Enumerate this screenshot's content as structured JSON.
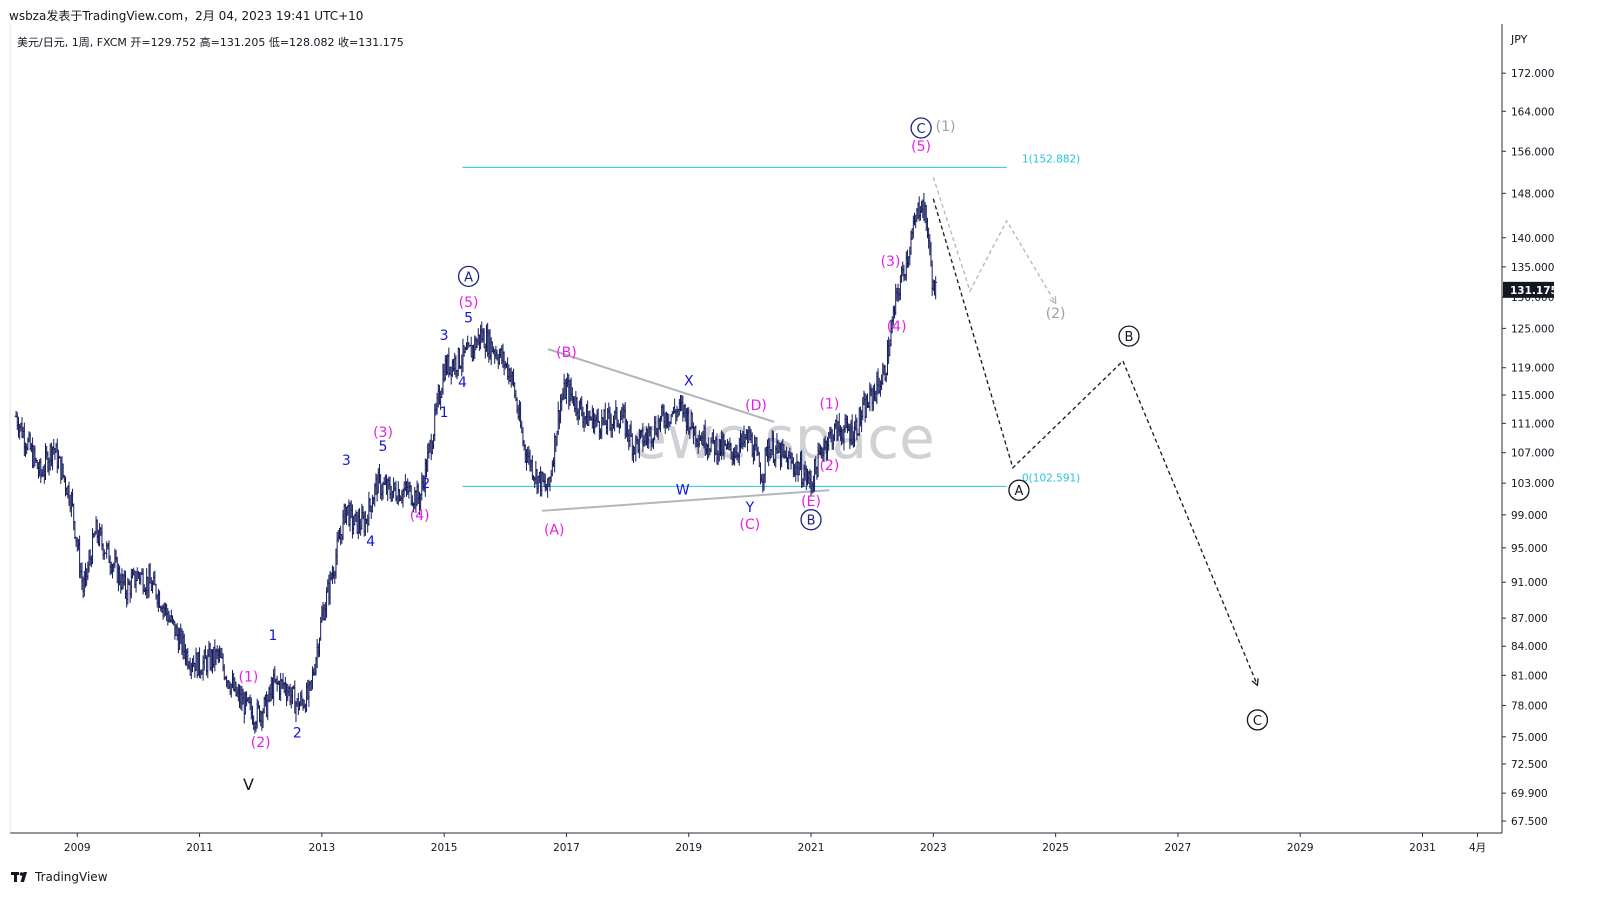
{
  "header": {
    "publisher_line": "wsbza发表于TradingView.com，2月 04, 2023 19:41 UTC+10"
  },
  "symbol_line": "美元/日元, 1周, FXCM  开=129.752  高=131.205  低=128.082  收=131.175",
  "watermark": "ewc space",
  "footer": {
    "brand": "TradingView",
    "brand_icon": "tradingview-logo-icon"
  },
  "colors": {
    "candles": "#131a5a",
    "fib": "#26c6da",
    "magenta": "#e91ee6",
    "blue": "#1515d8",
    "grey": "#9e9e9e",
    "navy": "#1a237e",
    "price_tag": "#131722"
  },
  "chart_data": {
    "type": "candlestick",
    "title": "美元/日元, 1周, FXCM",
    "y_axis": {
      "label": "JPY",
      "scale": "log",
      "ticks": [
        "172.000",
        "164.000",
        "156.000",
        "148.000",
        "140.000",
        "135.000",
        "130.000",
        "125.000",
        "119.000",
        "115.000",
        "111.000",
        "107.000",
        "103.000",
        "99.000",
        "95.000",
        "91.000",
        "87.000",
        "84.000",
        "81.000",
        "78.000",
        "75.000",
        "72.500",
        "69.900",
        "67.500"
      ],
      "ylim": [
        66.5,
        182
      ]
    },
    "x_axis": {
      "ticks": [
        "2009",
        "2011",
        "2013",
        "2015",
        "2017",
        "2019",
        "2021",
        "2023",
        "2025",
        "2027",
        "2029",
        "2031",
        "4月"
      ],
      "xlim": [
        2007.9,
        2032.3
      ]
    },
    "last_price": "131.175",
    "ohlc_last": {
      "open": 129.752,
      "high": 131.205,
      "low": 128.082,
      "close": 131.175
    },
    "price_path": [
      [
        2008.0,
        112
      ],
      [
        2008.2,
        108
      ],
      [
        2008.4,
        104
      ],
      [
        2008.6,
        108
      ],
      [
        2008.9,
        101
      ],
      [
        2009.1,
        90
      ],
      [
        2009.3,
        97
      ],
      [
        2009.6,
        93
      ],
      [
        2009.8,
        90
      ],
      [
        2010.0,
        92
      ],
      [
        2010.3,
        90
      ],
      [
        2010.5,
        87
      ],
      [
        2010.8,
        83
      ],
      [
        2011.0,
        82
      ],
      [
        2011.3,
        83
      ],
      [
        2011.6,
        79
      ],
      [
        2011.9,
        77
      ],
      [
        2012.1,
        78
      ],
      [
        2012.2,
        80
      ],
      [
        2012.4,
        80
      ],
      [
        2012.6,
        78
      ],
      [
        2012.8,
        79
      ],
      [
        2013.0,
        87
      ],
      [
        2013.2,
        93
      ],
      [
        2013.4,
        100
      ],
      [
        2013.5,
        98
      ],
      [
        2013.7,
        98
      ],
      [
        2013.9,
        103
      ],
      [
        2014.1,
        102
      ],
      [
        2014.4,
        102
      ],
      [
        2014.6,
        101
      ],
      [
        2014.8,
        109
      ],
      [
        2015.0,
        119
      ],
      [
        2015.2,
        120
      ],
      [
        2015.4,
        121
      ],
      [
        2015.6,
        124
      ],
      [
        2015.9,
        121
      ],
      [
        2016.1,
        118
      ],
      [
        2016.3,
        108
      ],
      [
        2016.5,
        104
      ],
      [
        2016.7,
        102
      ],
      [
        2016.9,
        114
      ],
      [
        2017.0,
        116
      ],
      [
        2017.3,
        112
      ],
      [
        2017.6,
        111
      ],
      [
        2017.9,
        112
      ],
      [
        2018.1,
        108
      ],
      [
        2018.3,
        109
      ],
      [
        2018.6,
        112
      ],
      [
        2018.9,
        113
      ],
      [
        2019.1,
        110
      ],
      [
        2019.4,
        108
      ],
      [
        2019.7,
        107
      ],
      [
        2020.0,
        109
      ],
      [
        2020.2,
        104
      ],
      [
        2020.3,
        108
      ],
      [
        2020.6,
        106
      ],
      [
        2020.8,
        105
      ],
      [
        2021.0,
        103
      ],
      [
        2021.2,
        108
      ],
      [
        2021.4,
        110
      ],
      [
        2021.7,
        110
      ],
      [
        2022.0,
        115
      ],
      [
        2022.2,
        118
      ],
      [
        2022.4,
        130
      ],
      [
        2022.6,
        138
      ],
      [
        2022.8,
        147
      ],
      [
        2022.9,
        142
      ],
      [
        2023.0,
        131.175
      ]
    ],
    "fib_levels": [
      {
        "label": "1(152.882)",
        "value": 152.882
      },
      {
        "label": "0(102.591)",
        "value": 102.591
      }
    ],
    "wave_labels": [
      {
        "text": "V",
        "date": 2011.8,
        "price": 70.6,
        "style": "black"
      },
      {
        "text": "(1)",
        "date": 2011.8,
        "price": 80.9,
        "style": "magenta"
      },
      {
        "text": "(2)",
        "date": 2012.0,
        "price": 74.5,
        "style": "magenta"
      },
      {
        "text": "1",
        "date": 2012.2,
        "price": 85.2,
        "style": "blue"
      },
      {
        "text": "2",
        "date": 2012.6,
        "price": 75.4,
        "style": "blue"
      },
      {
        "text": "3",
        "date": 2013.4,
        "price": 106.0,
        "style": "blue"
      },
      {
        "text": "4",
        "date": 2013.8,
        "price": 95.8,
        "style": "blue"
      },
      {
        "text": "(3)",
        "date": 2014.0,
        "price": 109.8,
        "style": "magenta"
      },
      {
        "text": "5",
        "date": 2014.0,
        "price": 107.9,
        "style": "blue"
      },
      {
        "text": "(4)",
        "date": 2014.6,
        "price": 99.0,
        "style": "magenta"
      },
      {
        "text": "2",
        "date": 2014.7,
        "price": 103.0,
        "style": "blue"
      },
      {
        "text": "1",
        "date": 2015.0,
        "price": 112.6,
        "style": "blue"
      },
      {
        "text": "3",
        "date": 2015.0,
        "price": 124.0,
        "style": "blue"
      },
      {
        "text": "4",
        "date": 2015.3,
        "price": 116.9,
        "style": "blue"
      },
      {
        "text": "5",
        "date": 2015.4,
        "price": 126.7,
        "style": "blue"
      },
      {
        "text": "(5)",
        "date": 2015.4,
        "price": 129.2,
        "style": "magenta"
      },
      {
        "text": "A",
        "date": 2015.4,
        "price": 133.4,
        "style": "navy-circle"
      },
      {
        "text": "(B)",
        "date": 2017.0,
        "price": 121.4,
        "style": "magenta"
      },
      {
        "text": "(A)",
        "date": 2016.8,
        "price": 97.2,
        "style": "magenta"
      },
      {
        "text": "X",
        "date": 2019.0,
        "price": 117.1,
        "style": "blue"
      },
      {
        "text": "W",
        "date": 2018.9,
        "price": 102.2,
        "style": "blue"
      },
      {
        "text": "(D)",
        "date": 2020.1,
        "price": 113.6,
        "style": "magenta"
      },
      {
        "text": "Y",
        "date": 2020.0,
        "price": 100.0,
        "style": "blue"
      },
      {
        "text": "(C)",
        "date": 2020.0,
        "price": 97.9,
        "style": "magenta"
      },
      {
        "text": "(1)",
        "date": 2021.3,
        "price": 113.8,
        "style": "magenta"
      },
      {
        "text": "(2)",
        "date": 2021.3,
        "price": 105.4,
        "style": "magenta"
      },
      {
        "text": "(E)",
        "date": 2021.0,
        "price": 100.7,
        "style": "magenta"
      },
      {
        "text": "B",
        "date": 2021.0,
        "price": 98.4,
        "style": "navy-circle"
      },
      {
        "text": "(4)",
        "date": 2022.4,
        "price": 125.4,
        "style": "magenta"
      },
      {
        "text": "(3)",
        "date": 2022.3,
        "price": 136.0,
        "style": "magenta"
      },
      {
        "text": "(5)",
        "date": 2022.8,
        "price": 157.0,
        "style": "magenta"
      },
      {
        "text": "C",
        "date": 2022.8,
        "price": 160.6,
        "style": "navy-circle"
      },
      {
        "text": "(1)",
        "date": 2023.2,
        "price": 161.0,
        "style": "grey"
      },
      {
        "text": "(2)",
        "date": 2025.0,
        "price": 127.4,
        "style": "grey"
      },
      {
        "text": "A",
        "date": 2024.4,
        "price": 102.1,
        "style": "black-circle"
      },
      {
        "text": "B",
        "date": 2026.2,
        "price": 123.8,
        "style": "black-circle"
      },
      {
        "text": "C",
        "date": 2028.3,
        "price": 76.6,
        "style": "black-circle"
      }
    ],
    "triangle_lines": [
      {
        "from": [
          2016.7,
          121.8
        ],
        "to": [
          2020.4,
          111.2
        ]
      },
      {
        "from": [
          2016.6,
          99.5
        ],
        "to": [
          2021.3,
          102.1
        ]
      }
    ],
    "projection_black": [
      [
        2023.0,
        147
      ],
      [
        2024.3,
        105
      ],
      [
        2026.1,
        120
      ],
      [
        2028.3,
        80
      ]
    ],
    "projection_grey": [
      [
        2023.0,
        151
      ],
      [
        2023.6,
        131
      ],
      [
        2024.2,
        143
      ],
      [
        2025.0,
        129
      ]
    ]
  }
}
